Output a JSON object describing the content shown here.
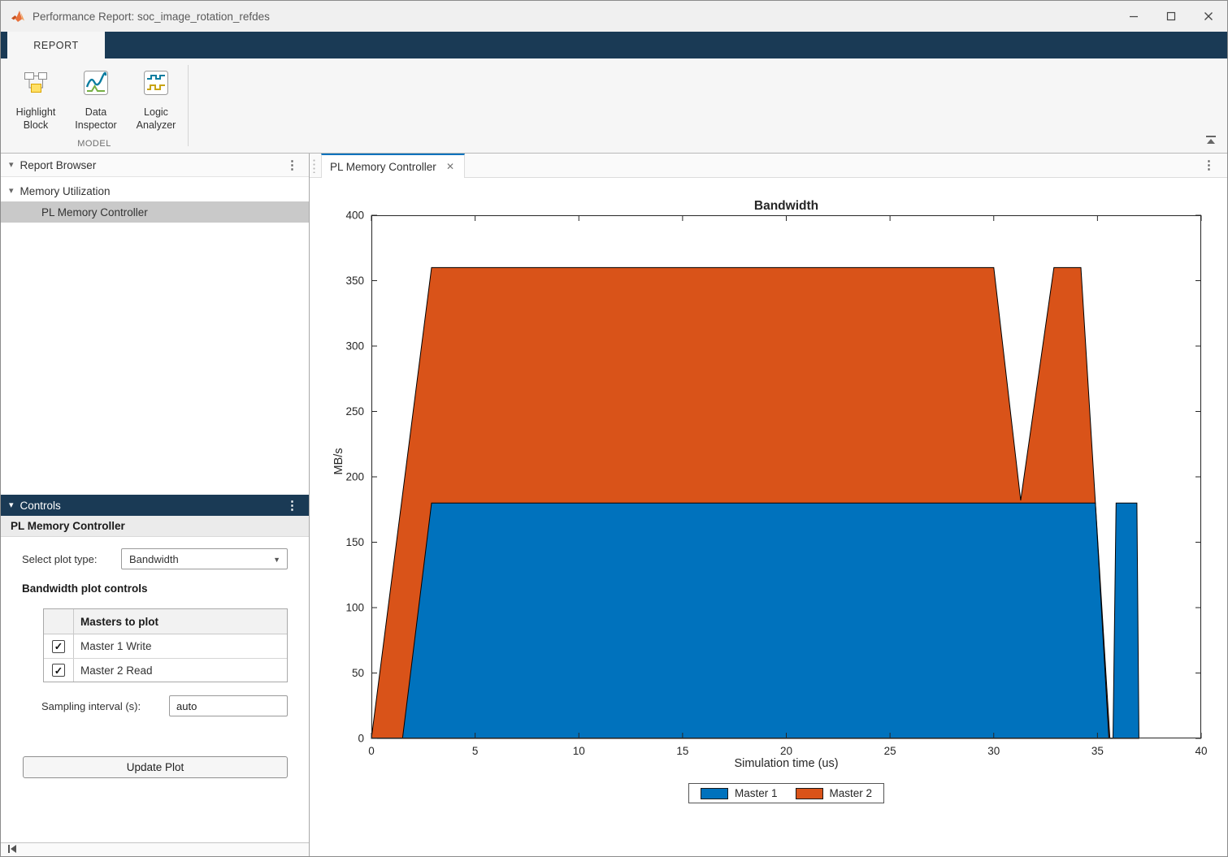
{
  "colors": {
    "accent_blue": "#0072BD",
    "ribbon_band": "#1A3A55",
    "selection_gray": "#C9C9C9"
  },
  "icons": {
    "kebab": "⋮",
    "tree_caret": "▾",
    "panel_caret": "▾",
    "dropdown_caret": "▼",
    "check": "✓",
    "close": "✕"
  },
  "titlebar": {
    "title": "Performance Report: soc_image_rotation_refdes"
  },
  "ribbon": {
    "tab_label": "REPORT",
    "group_label": "MODEL",
    "buttons": [
      {
        "label": "Highlight Block"
      },
      {
        "label": "Data Inspector"
      },
      {
        "label": "Logic Analyzer"
      }
    ]
  },
  "report_browser": {
    "title": "Report Browser",
    "tree": [
      {
        "label": "Memory Utilization",
        "expanded": true
      },
      {
        "label": "PL Memory Controller",
        "selected": true
      }
    ]
  },
  "controls": {
    "header": "Controls",
    "subtitle": "PL Memory Controller",
    "plot_type_label": "Select plot type:",
    "plot_type_value": "Bandwidth",
    "section_title": "Bandwidth plot controls",
    "masters_table": {
      "header": "Masters to plot",
      "rows": [
        {
          "label": "Master 1 Write",
          "checked": true
        },
        {
          "label": "Master 2 Read",
          "checked": true
        }
      ]
    },
    "sampling_label": "Sampling interval (s):",
    "sampling_value": "auto",
    "update_button_label": "Update Plot"
  },
  "document": {
    "tab_label": "PL Memory Controller"
  },
  "chart_data": {
    "type": "area",
    "title": "Bandwidth",
    "xlabel": "Simulation time (us)",
    "ylabel": "MB/s",
    "xlim": [
      0,
      40
    ],
    "ylim": [
      0,
      400
    ],
    "xticks": [
      0,
      5,
      10,
      15,
      20,
      25,
      30,
      35,
      40
    ],
    "yticks": [
      0,
      50,
      100,
      150,
      200,
      250,
      300,
      350,
      400
    ],
    "grid": false,
    "box": true,
    "legend": [
      "Master 1",
      "Master 2"
    ],
    "legend_colors": [
      "#0072BD",
      "#D95319"
    ],
    "legend_position": "below-x-axis",
    "series": [
      {
        "name": "Master 2 Read",
        "color": "#D95319",
        "points": [
          [
            0,
            0
          ],
          [
            2.9,
            360
          ],
          [
            30,
            360
          ],
          [
            31.3,
            182
          ],
          [
            32.9,
            360
          ],
          [
            34.2,
            360
          ],
          [
            35.6,
            0
          ]
        ]
      },
      {
        "name": "Master 1 Write",
        "color": "#0072BD",
        "points": [
          [
            1.5,
            0
          ],
          [
            2.9,
            180
          ],
          [
            34.9,
            180
          ],
          [
            35.55,
            0
          ],
          [
            35.75,
            0
          ],
          [
            35.9,
            180
          ],
          [
            36.9,
            180
          ],
          [
            37,
            0
          ]
        ]
      }
    ]
  }
}
